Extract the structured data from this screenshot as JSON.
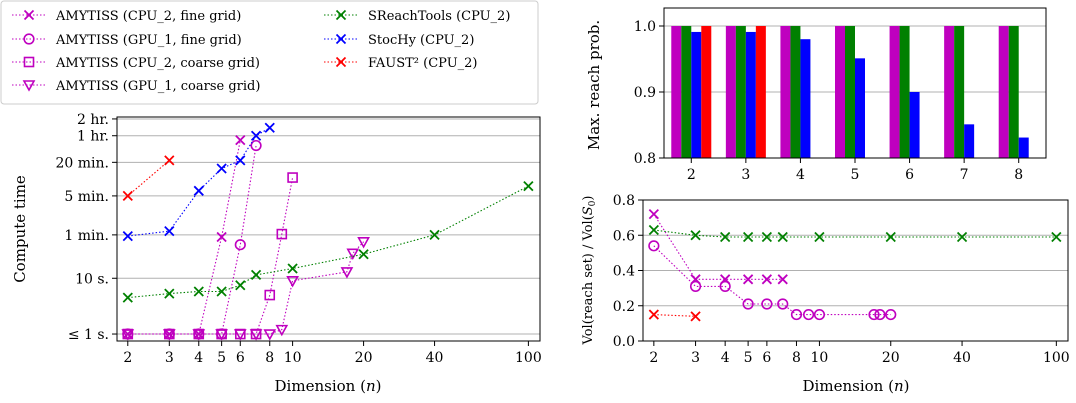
{
  "chart_data": [
    {
      "id": "compute_time",
      "type": "line",
      "xscale": "log",
      "yscale": "log",
      "xlabel": "Dimension (n)",
      "ylabel": "Compute time",
      "xticks": [
        2,
        3,
        4,
        5,
        6,
        8,
        10,
        20,
        40,
        100
      ],
      "yticks": [
        {
          "value": 1,
          "label": "≤ 1 s."
        },
        {
          "value": 10,
          "label": "10 s."
        },
        {
          "value": 60,
          "label": "1 min."
        },
        {
          "value": 300,
          "label": "5 min."
        },
        {
          "value": 1200,
          "label": "20 min."
        },
        {
          "value": 3600,
          "label": "1 hr."
        },
        {
          "value": 7200,
          "label": "2 hr."
        }
      ],
      "ylim_seconds": [
        0.75,
        7800
      ],
      "xlim": [
        1.8,
        112
      ],
      "grid": "horizontal",
      "legend_position": "top-left",
      "legend": [
        {
          "label": "AMYTISS (CPU_2, fine grid)",
          "color": "#bf00bf",
          "marker": "x"
        },
        {
          "label": "AMYTISS (GPU_1, fine grid)",
          "color": "#bf00bf",
          "marker": "circle"
        },
        {
          "label": "AMYTISS (CPU_2, coarse grid)",
          "color": "#bf00bf",
          "marker": "square"
        },
        {
          "label": "AMYTISS (GPU_1, coarse grid)",
          "color": "#bf00bf",
          "marker": "triangle"
        },
        {
          "label": "SReachTools (CPU_2)",
          "color": "#008000",
          "marker": "x"
        },
        {
          "label": "StocHy (CPU_2)",
          "color": "#0000ff",
          "marker": "x"
        },
        {
          "label": "FAUST² (CPU_2)",
          "color": "#ff0000",
          "marker": "x"
        }
      ],
      "series": [
        {
          "name": "AMYTISS (CPU_2, fine grid)",
          "color": "#bf00bf",
          "marker": "x",
          "x": [
            2,
            3,
            4,
            5,
            6
          ],
          "y": [
            1,
            1,
            1,
            55,
            3000
          ]
        },
        {
          "name": "AMYTISS (GPU_1, fine grid)",
          "color": "#bf00bf",
          "marker": "circle",
          "x": [
            2,
            3,
            4,
            5,
            6,
            7
          ],
          "y": [
            1,
            1,
            1,
            1,
            40,
            2400
          ]
        },
        {
          "name": "AMYTISS (CPU_2, coarse grid)",
          "color": "#bf00bf",
          "marker": "square",
          "x": [
            2,
            3,
            4,
            5,
            6,
            7,
            8,
            9,
            10
          ],
          "y": [
            1,
            1,
            1,
            1,
            1,
            1,
            5,
            62,
            640
          ]
        },
        {
          "name": "AMYTISS (GPU_1, coarse grid)",
          "color": "#bf00bf",
          "marker": "triangle",
          "x": [
            2,
            3,
            4,
            5,
            6,
            7,
            8,
            9,
            10,
            17,
            18,
            20
          ],
          "y": [
            1,
            1,
            1,
            1,
            1,
            1,
            1,
            1.2,
            9,
            13,
            28,
            45
          ]
        },
        {
          "name": "SReachTools (CPU_2)",
          "color": "#008000",
          "marker": "x",
          "x": [
            2,
            3,
            4,
            5,
            6,
            7,
            10,
            20,
            40,
            100
          ],
          "y": [
            4.5,
            5.3,
            5.8,
            5.8,
            7.5,
            11.5,
            15,
            27,
            60,
            450
          ]
        },
        {
          "name": "StocHy (CPU_2)",
          "color": "#0000ff",
          "marker": "x",
          "x": [
            2,
            3,
            4,
            5,
            6,
            7,
            8
          ],
          "y": [
            57,
            70,
            370,
            930,
            1300,
            3600,
            5000
          ]
        },
        {
          "name": "FAUST² (CPU_2)",
          "color": "#ff0000",
          "marker": "x",
          "x": [
            2,
            3
          ],
          "y": [
            300,
            1300
          ]
        }
      ]
    },
    {
      "id": "max_reach_prob",
      "type": "bar",
      "ylabel": "Max. reach prob.",
      "xlabel": "",
      "categories": [
        "2",
        "3",
        "4",
        "5",
        "6",
        "7",
        "8"
      ],
      "ylim": [
        0.8,
        1.0
      ],
      "yticks": [
        0.8,
        0.9,
        1.0
      ],
      "grid": "horizontal",
      "series": [
        {
          "color": "#bf00bf",
          "values": [
            1.0,
            1.0,
            1.0,
            1.0,
            1.0,
            1.0,
            1.0
          ]
        },
        {
          "color": "#008000",
          "values": [
            1.0,
            1.0,
            1.0,
            1.0,
            1.0,
            1.0,
            1.0
          ]
        },
        {
          "color": "#0000ff",
          "values": [
            0.991,
            0.991,
            0.98,
            0.951,
            0.9,
            0.851,
            0.831
          ]
        },
        {
          "color": "#ff0000",
          "values": [
            1.0,
            1.0,
            null,
            null,
            null,
            null,
            null
          ]
        }
      ]
    },
    {
      "id": "volume_ratio",
      "type": "scatter",
      "xscale": "log",
      "xlabel": "Dimension (n)",
      "ylabel": "Vol(reach set) / Vol(S_0)",
      "xticks": [
        2,
        3,
        4,
        5,
        6,
        8,
        10,
        20,
        40,
        100
      ],
      "xlim": [
        1.8,
        112
      ],
      "ylim": [
        0,
        0.8
      ],
      "yticks": [
        0.0,
        0.2,
        0.4,
        0.6,
        0.8
      ],
      "grid": "horizontal",
      "series": [
        {
          "color": "#bf00bf",
          "marker": "x",
          "x": [
            2,
            3,
            4,
            5,
            6,
            7
          ],
          "y": [
            0.72,
            0.35,
            0.35,
            0.35,
            0.35,
            0.35
          ]
        },
        {
          "color": "#bf00bf",
          "marker": "circle",
          "x": [
            2,
            3,
            4,
            5,
            6,
            7,
            8,
            9,
            10,
            17,
            18,
            20
          ],
          "y": [
            0.54,
            0.31,
            0.31,
            0.21,
            0.21,
            0.21,
            0.15,
            0.15,
            0.15,
            0.15,
            0.15,
            0.15
          ]
        },
        {
          "color": "#008000",
          "marker": "x",
          "x": [
            2,
            3,
            4,
            5,
            6,
            7,
            10,
            20,
            40,
            100
          ],
          "y": [
            0.63,
            0.6,
            0.59,
            0.59,
            0.59,
            0.59,
            0.59,
            0.59,
            0.59,
            0.59
          ]
        },
        {
          "color": "#ff0000",
          "marker": "x",
          "x": [
            2,
            3
          ],
          "y": [
            0.15,
            0.14
          ]
        }
      ]
    }
  ]
}
